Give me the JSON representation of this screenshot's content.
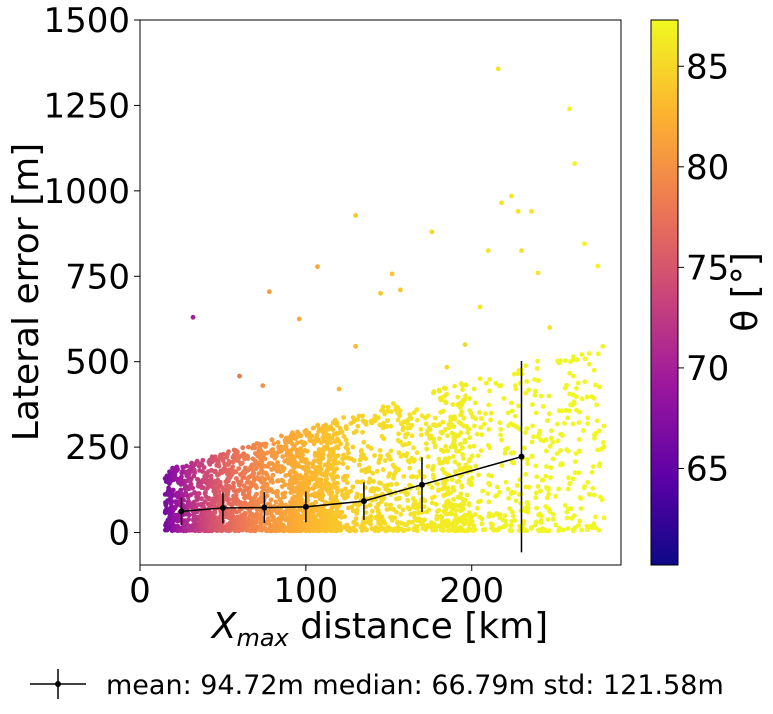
{
  "chart_data": {
    "type": "scatter",
    "xlabel": "X_max distance [km]",
    "xlabel_main": "X",
    "xlabel_sub": "max",
    "xlabel_rest": " distance [km]",
    "ylabel": "Lateral error [m]",
    "xlim": [
      0,
      290
    ],
    "ylim": [
      -95,
      1500
    ],
    "x_ticks": [
      0,
      100,
      200
    ],
    "y_ticks": [
      0,
      250,
      500,
      750,
      1000,
      1250,
      1500
    ],
    "colorbar": {
      "label": "θ [°]",
      "range": [
        60.2,
        87.3
      ],
      "ticks": [
        65,
        70,
        75,
        80,
        85
      ],
      "colormap": "plasma",
      "colors": [
        "#0d0887",
        "#5c01a6",
        "#9c179e",
        "#cc4778",
        "#ed7953",
        "#fdb42f",
        "#f0f921"
      ]
    },
    "error_series": {
      "x": [
        25,
        50,
        75,
        100,
        135,
        170,
        230
      ],
      "y": [
        62,
        72,
        73,
        75,
        92,
        140,
        222
      ],
      "yerr_low": [
        40,
        45,
        45,
        45,
        55,
        80,
        280
      ],
      "yerr_high": [
        40,
        45,
        45,
        45,
        55,
        80,
        280
      ]
    },
    "outliers": [
      {
        "x": 32,
        "y": 630,
        "theta": 70
      },
      {
        "x": 78,
        "y": 705,
        "theta": 81
      },
      {
        "x": 96,
        "y": 625,
        "theta": 82
      },
      {
        "x": 107,
        "y": 778,
        "theta": 82
      },
      {
        "x": 130,
        "y": 928,
        "theta": 84
      },
      {
        "x": 130,
        "y": 545,
        "theta": 83
      },
      {
        "x": 145,
        "y": 700,
        "theta": 84
      },
      {
        "x": 152,
        "y": 757,
        "theta": 84
      },
      {
        "x": 157,
        "y": 710,
        "theta": 84
      },
      {
        "x": 176,
        "y": 880,
        "theta": 85
      },
      {
        "x": 210,
        "y": 825,
        "theta": 86
      },
      {
        "x": 216,
        "y": 1357,
        "theta": 86
      },
      {
        "x": 218,
        "y": 965,
        "theta": 86
      },
      {
        "x": 224,
        "y": 985,
        "theta": 86
      },
      {
        "x": 228,
        "y": 940,
        "theta": 86
      },
      {
        "x": 230,
        "y": 825,
        "theta": 86
      },
      {
        "x": 236,
        "y": 940,
        "theta": 86
      },
      {
        "x": 240,
        "y": 760,
        "theta": 86
      },
      {
        "x": 247,
        "y": 600,
        "theta": 86
      },
      {
        "x": 259,
        "y": 1240,
        "theta": 87
      },
      {
        "x": 262,
        "y": 1080,
        "theta": 87
      },
      {
        "x": 268,
        "y": 845,
        "theta": 87
      },
      {
        "x": 276,
        "y": 780,
        "theta": 87
      },
      {
        "x": 279,
        "y": 545,
        "theta": 87
      },
      {
        "x": 120,
        "y": 420,
        "theta": 83
      },
      {
        "x": 60,
        "y": 458,
        "theta": 78
      },
      {
        "x": 74,
        "y": 430,
        "theta": 80
      },
      {
        "x": 185,
        "y": 484,
        "theta": 85
      },
      {
        "x": 196,
        "y": 550,
        "theta": 85
      },
      {
        "x": 205,
        "y": 660,
        "theta": 86
      }
    ]
  },
  "legend": {
    "text": "mean: 94.72m median: 66.79m  std: 121.58m"
  }
}
